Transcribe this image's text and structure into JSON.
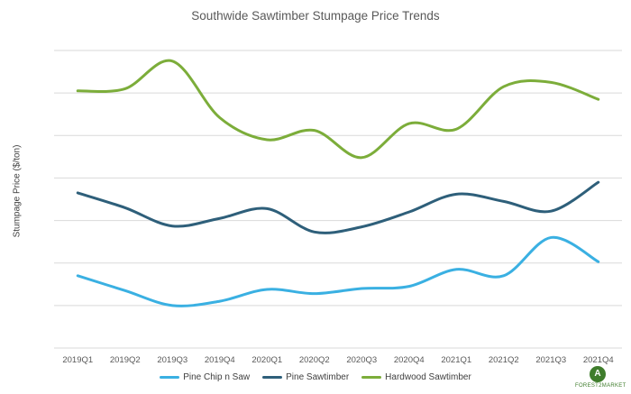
{
  "chart_data": {
    "type": "line",
    "title": "Southwide Sawtimber Stumpage Price Trends",
    "ylabel": "Stumpage Price ($/ton)",
    "xlabel": "",
    "categories": [
      "2019Q1",
      "2019Q2",
      "2019Q3",
      "2019Q4",
      "2020Q1",
      "2020Q2",
      "2020Q3",
      "2020Q4",
      "2021Q1",
      "2021Q2",
      "2021Q3",
      "2021Q4"
    ],
    "ylim": [
      0,
      7
    ],
    "grid": true,
    "legend": "bottom",
    "series": [
      {
        "name": "Pine Chip n Saw",
        "color": "#3ab0e2",
        "values": [
          1.7,
          1.35,
          1.0,
          1.1,
          1.38,
          1.28,
          1.4,
          1.45,
          1.85,
          1.7,
          2.6,
          2.03
        ]
      },
      {
        "name": "Pine Sawtimber",
        "color": "#2e5f7a",
        "values": [
          3.65,
          3.3,
          2.87,
          3.05,
          3.28,
          2.73,
          2.85,
          3.2,
          3.62,
          3.45,
          3.22,
          3.9
        ]
      },
      {
        "name": "Hardwood Sawtimber",
        "color": "#7cad3a",
        "values": [
          6.05,
          6.1,
          6.75,
          5.42,
          4.9,
          5.12,
          4.48,
          5.28,
          5.15,
          6.15,
          6.25,
          5.85
        ]
      }
    ]
  },
  "logo": {
    "mark": "A",
    "text": "FOREST2MARKET"
  }
}
